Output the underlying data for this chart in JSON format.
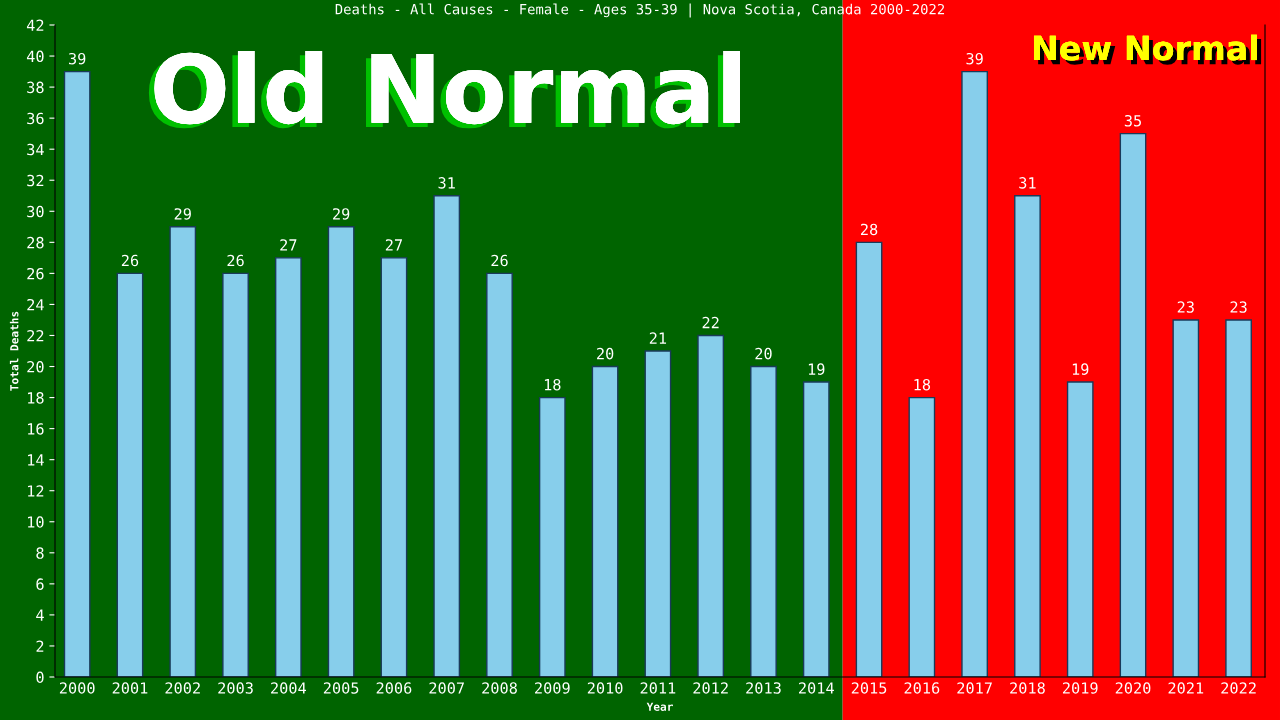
{
  "chart_data": {
    "type": "bar",
    "title": "Deaths - All Causes - Female - Ages 35-39 | Nova Scotia, Canada 2000-2022",
    "xlabel": "Year",
    "ylabel": "Total Deaths",
    "categories": [
      "2000",
      "2001",
      "2002",
      "2003",
      "2004",
      "2005",
      "2006",
      "2007",
      "2008",
      "2009",
      "2010",
      "2011",
      "2012",
      "2013",
      "2014",
      "2015",
      "2016",
      "2017",
      "2018",
      "2019",
      "2020",
      "2021",
      "2022"
    ],
    "values": [
      39,
      26,
      29,
      26,
      27,
      29,
      27,
      31,
      26,
      18,
      20,
      21,
      22,
      20,
      19,
      28,
      18,
      39,
      31,
      19,
      35,
      23,
      23
    ],
    "color": "#87ceeb",
    "data_labels": true,
    "ylim": [
      0,
      42
    ],
    "yticks": [
      0,
      2,
      4,
      6,
      8,
      10,
      12,
      14,
      16,
      18,
      20,
      22,
      24,
      26,
      28,
      30,
      32,
      34,
      36,
      38,
      40,
      42
    ],
    "grid": false,
    "bands": [
      {
        "axis": "x",
        "from": "2000",
        "to": "2014",
        "label": "Old Normal",
        "color": "#006400"
      },
      {
        "axis": "x",
        "from": "2015",
        "to": "2022",
        "label": "New Normal",
        "color": "#ff0000"
      }
    ]
  }
}
